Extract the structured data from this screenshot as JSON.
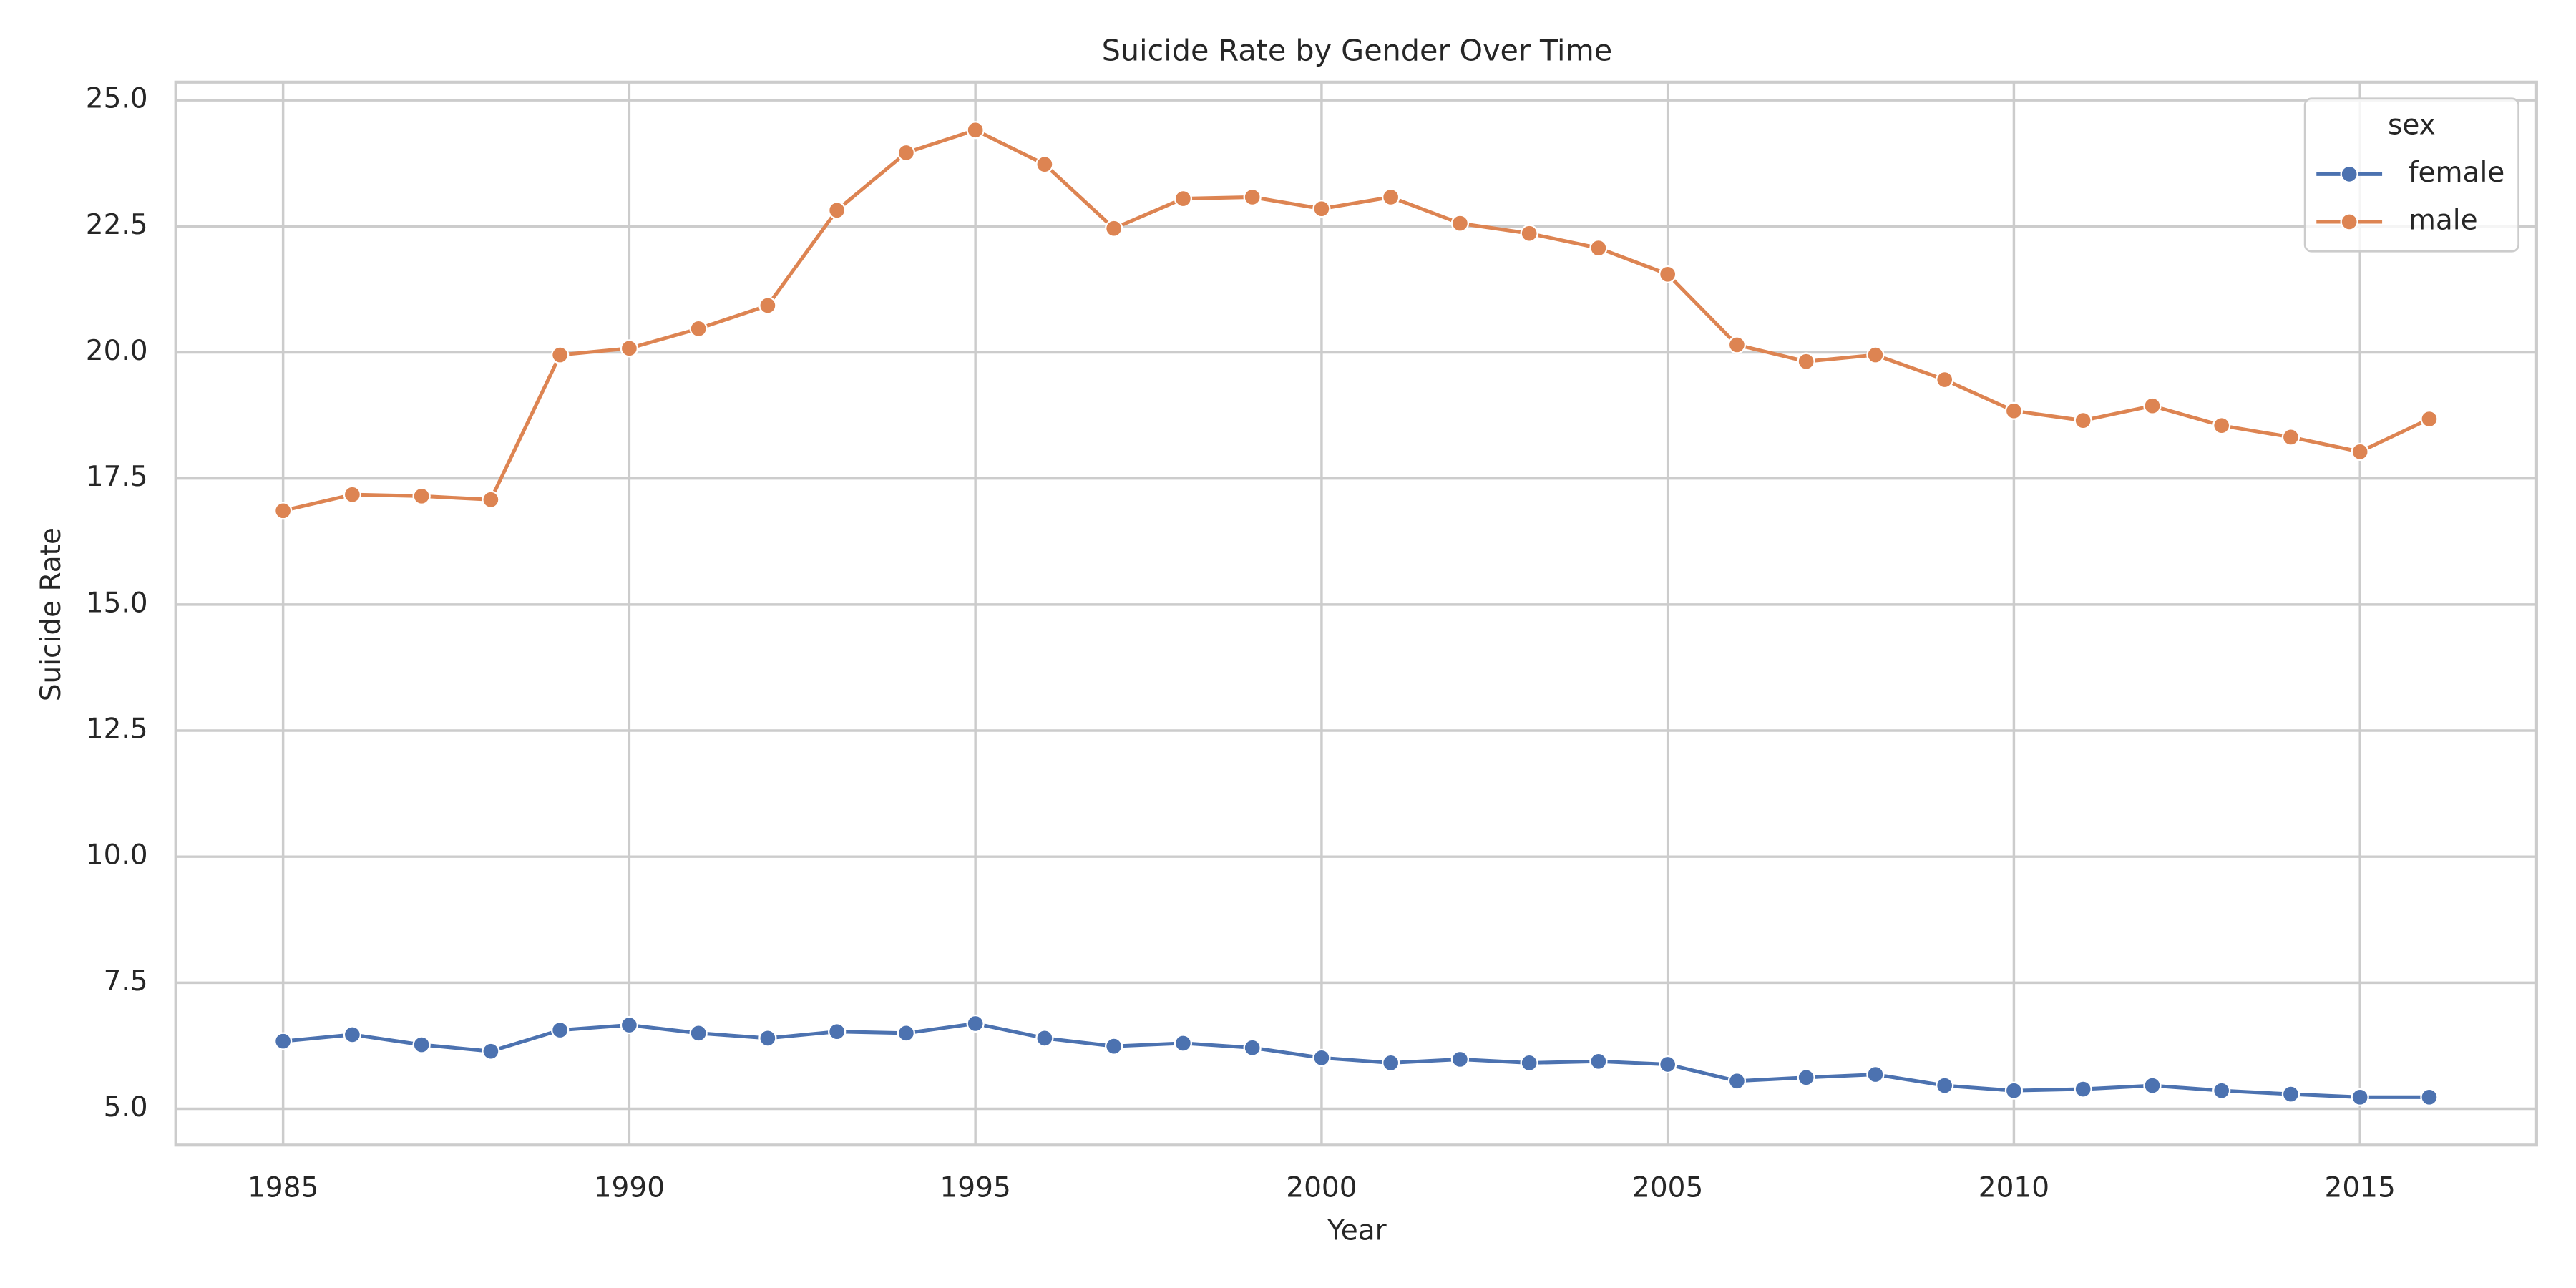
{
  "chart_data": {
    "type": "line",
    "title": "Suicide Rate by Gender Over Time",
    "x_label": "Year",
    "y_label": "Suicide Rate",
    "x": [
      1985,
      1986,
      1987,
      1988,
      1989,
      1990,
      1991,
      1992,
      1993,
      1994,
      1995,
      1996,
      1997,
      1998,
      1999,
      2000,
      2001,
      2002,
      2003,
      2004,
      2005,
      2006,
      2007,
      2008,
      2009,
      2010,
      2011,
      2012,
      2013,
      2014,
      2015,
      2016
    ],
    "series": [
      {
        "name": "female",
        "color": "#4c72b0",
        "values": [
          6.34,
          6.47,
          6.27,
          6.14,
          6.56,
          6.66,
          6.5,
          6.4,
          6.53,
          6.5,
          6.69,
          6.4,
          6.24,
          6.3,
          6.21,
          6.01,
          5.91,
          5.98,
          5.91,
          5.94,
          5.88,
          5.55,
          5.62,
          5.68,
          5.46,
          5.36,
          5.39,
          5.46,
          5.36,
          5.29,
          5.23,
          5.23
        ]
      },
      {
        "name": "male",
        "color": "#dd8452",
        "values": [
          16.86,
          17.18,
          17.15,
          17.08,
          19.95,
          20.08,
          20.47,
          20.93,
          22.82,
          23.96,
          24.41,
          23.73,
          22.46,
          23.05,
          23.08,
          22.85,
          23.08,
          22.56,
          22.36,
          22.07,
          21.55,
          20.15,
          19.82,
          19.95,
          19.46,
          18.84,
          18.65,
          18.94,
          18.55,
          18.32,
          18.03,
          18.68
        ]
      }
    ],
    "legend_title": "sex",
    "legend_position": "upper right",
    "xlim": [
      1983.45,
      2017.55
    ],
    "xticks": [
      1985,
      1990,
      1995,
      2000,
      2005,
      2010,
      2015
    ],
    "ylim": [
      4.28,
      25.36
    ],
    "yticks": [
      {
        "value": 5,
        "label": "5.0"
      },
      {
        "value": 7.5,
        "label": "7.5"
      },
      {
        "value": 10,
        "label": "10.0"
      },
      {
        "value": 12.5,
        "label": "12.5"
      },
      {
        "value": 15,
        "label": "15.0"
      },
      {
        "value": 17.5,
        "label": "17.5"
      },
      {
        "value": 20,
        "label": "20.0"
      },
      {
        "value": 22.5,
        "label": "22.5"
      },
      {
        "value": 25,
        "label": "25.0"
      }
    ],
    "grid": true
  }
}
